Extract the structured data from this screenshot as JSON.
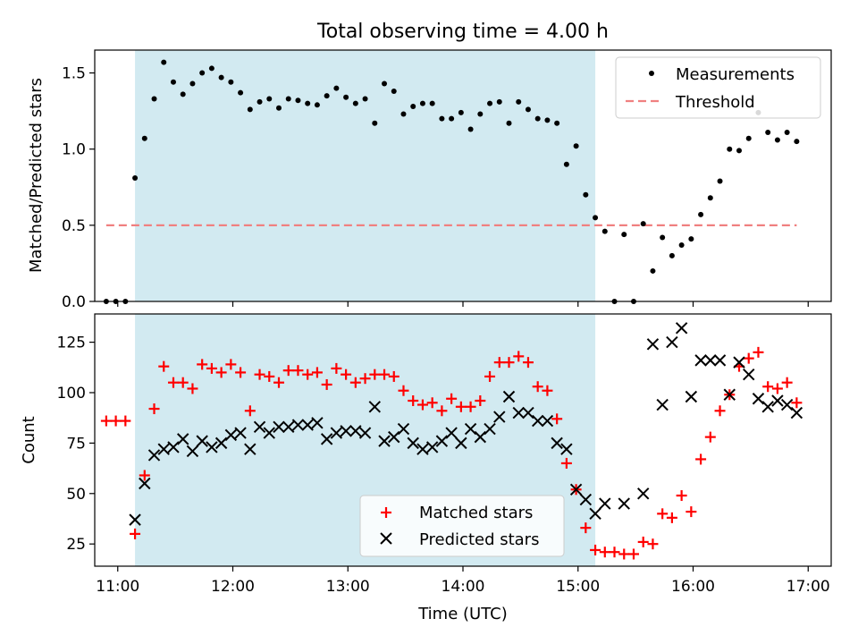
{
  "chart_data": [
    {
      "type": "scatter",
      "title": "Total observing time = 4.00 h",
      "xlabel": "",
      "ylabel": "Matched/Predicted stars",
      "xlim": [
        "10:48",
        "17:12"
      ],
      "ylim": [
        0,
        1.65
      ],
      "yticks": [
        0.0,
        0.5,
        1.0,
        1.5
      ],
      "ytick_labels": [
        "0.0",
        "0.5",
        "1.0",
        "1.5"
      ],
      "shaded_interval": [
        "11:09",
        "15:09"
      ],
      "shade_color": "#add8e6",
      "legend_position": "upper right",
      "series": [
        {
          "name": "Measurements",
          "marker": "dot",
          "color": "#000000",
          "x": [
            "10:54",
            "10:59",
            "11:04",
            "11:09",
            "11:14",
            "11:19",
            "11:24",
            "11:29",
            "11:34",
            "11:39",
            "11:44",
            "11:49",
            "11:54",
            "11:59",
            "12:04",
            "12:09",
            "12:14",
            "12:19",
            "12:24",
            "12:29",
            "12:34",
            "12:39",
            "12:44",
            "12:49",
            "12:54",
            "12:59",
            "13:04",
            "13:09",
            "13:14",
            "13:19",
            "13:24",
            "13:29",
            "13:34",
            "13:39",
            "13:44",
            "13:49",
            "13:54",
            "13:59",
            "14:04",
            "14:09",
            "14:14",
            "14:19",
            "14:24",
            "14:29",
            "14:34",
            "14:39",
            "14:44",
            "14:49",
            "14:54",
            "14:59",
            "15:04",
            "15:09",
            "15:14",
            "15:19",
            "15:24",
            "15:29",
            "15:34",
            "15:39",
            "15:44",
            "15:49",
            "15:54",
            "15:59",
            "16:04",
            "16:09",
            "16:14",
            "16:19",
            "16:24",
            "16:29",
            "16:34",
            "16:39",
            "16:44",
            "16:49",
            "16:54"
          ],
          "y": [
            0.0,
            0.0,
            0.0,
            0.81,
            1.07,
            1.33,
            1.57,
            1.44,
            1.36,
            1.43,
            1.5,
            1.53,
            1.47,
            1.44,
            1.37,
            1.26,
            1.31,
            1.33,
            1.27,
            1.33,
            1.32,
            1.3,
            1.29,
            1.35,
            1.4,
            1.34,
            1.3,
            1.33,
            1.17,
            1.43,
            1.38,
            1.23,
            1.28,
            1.3,
            1.3,
            1.2,
            1.2,
            1.24,
            1.13,
            1.23,
            1.3,
            1.31,
            1.17,
            1.31,
            1.26,
            1.2,
            1.19,
            1.17,
            0.9,
            1.02,
            0.7,
            0.55,
            0.46,
            0.0,
            0.44,
            0.0,
            0.51,
            0.2,
            0.42,
            0.3,
            0.37,
            0.41,
            0.57,
            0.68,
            0.79,
            1.0,
            0.99,
            1.07,
            1.24,
            1.11,
            1.06,
            1.11,
            1.05
          ]
        },
        {
          "name": "Threshold",
          "marker": "dashed-line",
          "color": "#f08080",
          "x": [
            "10:54",
            "16:54"
          ],
          "y": [
            0.5,
            0.5
          ]
        }
      ]
    },
    {
      "type": "scatter",
      "title": "",
      "xlabel": "Time (UTC)",
      "ylabel": "Count",
      "xlim": [
        "10:48",
        "17:12"
      ],
      "ylim": [
        14,
        139
      ],
      "xticks": [
        "11:00",
        "12:00",
        "13:00",
        "14:00",
        "15:00",
        "16:00",
        "17:00"
      ],
      "yticks": [
        25,
        50,
        75,
        100,
        125
      ],
      "ytick_labels": [
        "25",
        "50",
        "75",
        "100",
        "125"
      ],
      "shaded_interval": [
        "11:09",
        "15:09"
      ],
      "shade_color": "#add8e6",
      "legend_position": "lower center",
      "series": [
        {
          "name": "Matched stars",
          "marker": "plus",
          "color": "#ff0000",
          "x": [
            "10:54",
            "10:59",
            "11:04",
            "11:09",
            "11:14",
            "11:19",
            "11:24",
            "11:29",
            "11:34",
            "11:39",
            "11:44",
            "11:49",
            "11:54",
            "11:59",
            "12:04",
            "12:09",
            "12:14",
            "12:19",
            "12:24",
            "12:29",
            "12:34",
            "12:39",
            "12:44",
            "12:49",
            "12:54",
            "12:59",
            "13:04",
            "13:09",
            "13:14",
            "13:19",
            "13:24",
            "13:29",
            "13:34",
            "13:39",
            "13:44",
            "13:49",
            "13:54",
            "13:59",
            "14:04",
            "14:09",
            "14:14",
            "14:19",
            "14:24",
            "14:29",
            "14:34",
            "14:39",
            "14:44",
            "14:49",
            "14:54",
            "14:59",
            "15:04",
            "15:09",
            "15:14",
            "15:19",
            "15:24",
            "15:29",
            "15:34",
            "15:39",
            "15:44",
            "15:49",
            "15:54",
            "15:59",
            "16:04",
            "16:09",
            "16:14",
            "16:19",
            "16:24",
            "16:29",
            "16:34",
            "16:39",
            "16:44",
            "16:49",
            "16:54"
          ],
          "y": [
            86,
            86,
            86,
            30,
            59,
            92,
            113,
            105,
            105,
            102,
            114,
            112,
            110,
            114,
            110,
            91,
            109,
            108,
            105,
            111,
            111,
            109,
            110,
            104,
            112,
            109,
            105,
            107,
            109,
            109,
            108,
            101,
            96,
            94,
            95,
            91,
            97,
            93,
            93,
            96,
            108,
            115,
            115,
            118,
            115,
            103,
            101,
            87,
            65,
            52,
            33,
            22,
            21,
            21,
            20,
            20,
            26,
            25,
            40,
            38,
            49,
            41,
            67,
            78,
            91,
            99,
            113,
            117,
            120,
            103,
            102,
            105,
            95
          ]
        },
        {
          "name": "Predicted stars",
          "marker": "x",
          "color": "#000000",
          "x": [
            "11:09",
            "11:14",
            "11:19",
            "11:24",
            "11:29",
            "11:34",
            "11:39",
            "11:44",
            "11:49",
            "11:54",
            "11:59",
            "12:04",
            "12:09",
            "12:14",
            "12:19",
            "12:24",
            "12:29",
            "12:34",
            "12:39",
            "12:44",
            "12:49",
            "12:54",
            "12:59",
            "13:04",
            "13:09",
            "13:14",
            "13:19",
            "13:24",
            "13:29",
            "13:34",
            "13:39",
            "13:44",
            "13:49",
            "13:54",
            "13:59",
            "14:04",
            "14:09",
            "14:14",
            "14:19",
            "14:24",
            "14:29",
            "14:34",
            "14:39",
            "14:44",
            "14:49",
            "14:54",
            "14:59",
            "15:04",
            "15:09",
            "15:14",
            "15:24",
            "15:34",
            "15:39",
            "15:44",
            "15:49",
            "15:54",
            "15:59",
            "16:04",
            "16:09",
            "16:14",
            "16:19",
            "16:24",
            "16:29",
            "16:34",
            "16:39",
            "16:44",
            "16:49",
            "16:54"
          ],
          "y": [
            37,
            55,
            69,
            72,
            73,
            77,
            71,
            76,
            73,
            75,
            79,
            80,
            72,
            83,
            80,
            83,
            83,
            84,
            84,
            85,
            77,
            80,
            81,
            81,
            80,
            93,
            76,
            78,
            82,
            75,
            72,
            73,
            76,
            80,
            75,
            82,
            78,
            82,
            88,
            98,
            90,
            90,
            86,
            86,
            75,
            72,
            52,
            47,
            40,
            45,
            45,
            50,
            124,
            94,
            125,
            132,
            98,
            116,
            116,
            116,
            99,
            115,
            109,
            97,
            93,
            96,
            94,
            90
          ]
        }
      ]
    }
  ]
}
